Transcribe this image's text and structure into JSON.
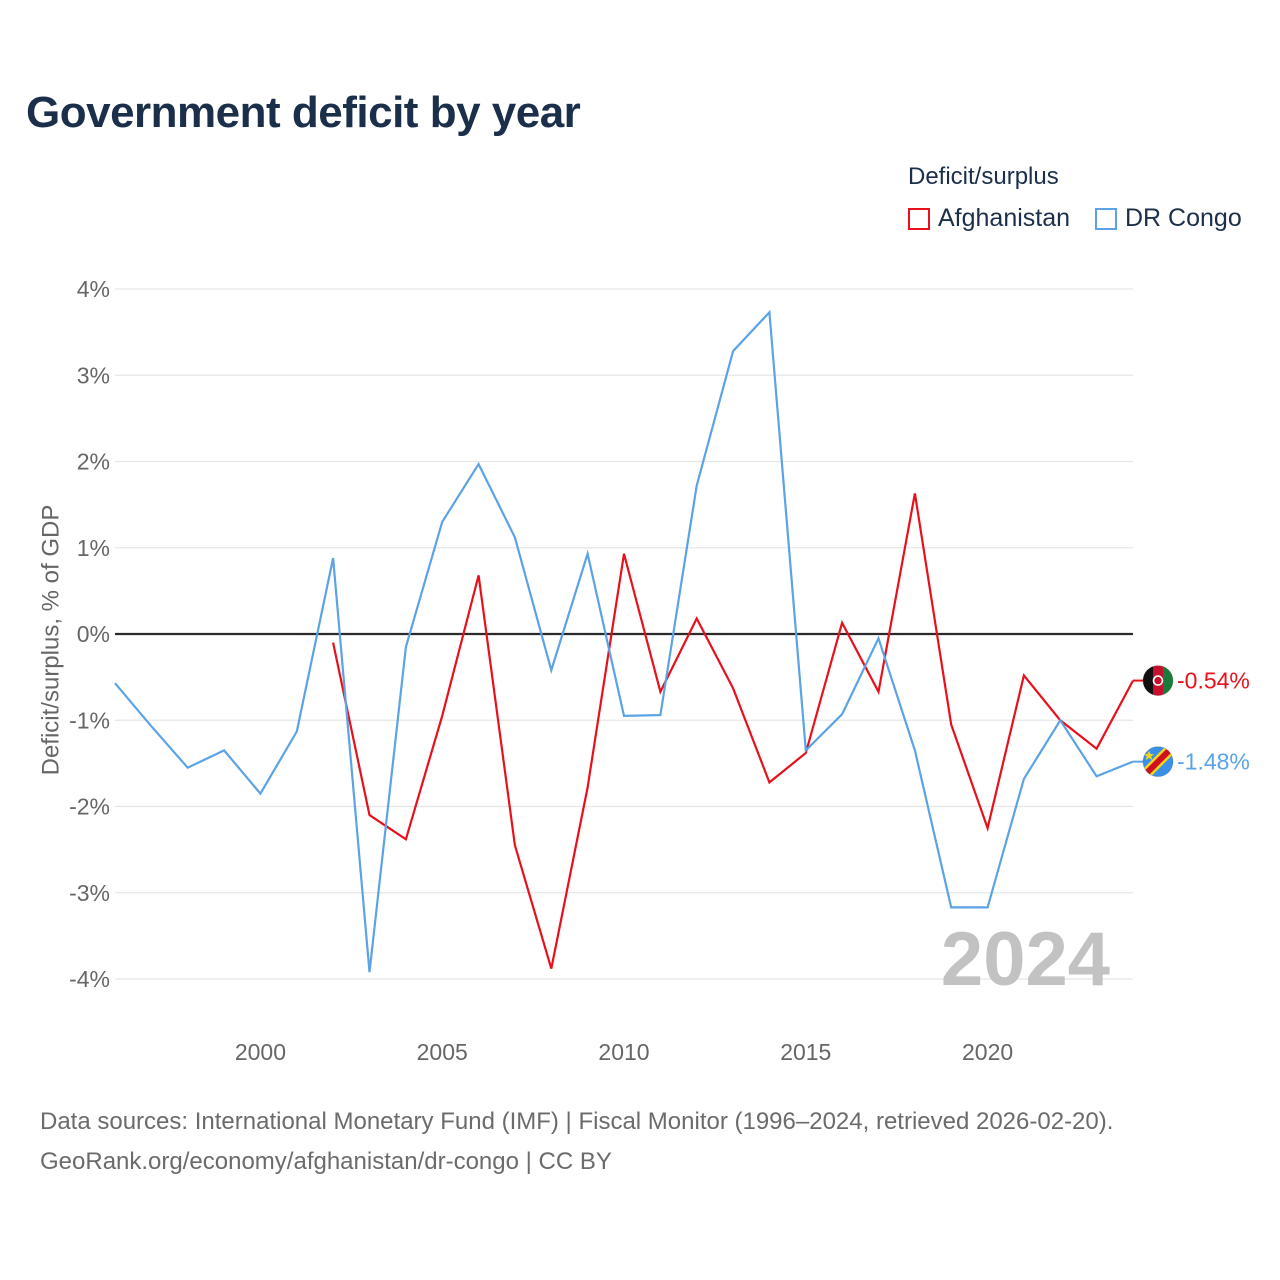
{
  "title": "Government deficit by year",
  "legend": {
    "title": "Deficit/surplus",
    "items": [
      {
        "label": "Afghanistan",
        "color": "#e8101a"
      },
      {
        "label": "DR Congo",
        "color": "#5ba3e6"
      }
    ]
  },
  "watermark_year": "2024",
  "footer": {
    "line1": "Data sources: International Monetary Fund (IMF) | Fiscal Monitor (1996–2024, retrieved 2026-02-20).",
    "line2": "GeoRank.org/economy/afghanistan/dr-congo | CC BY"
  },
  "chart_data": {
    "type": "line",
    "title": "Government deficit by year",
    "xlabel": "",
    "ylabel": "Deficit/surplus, % of GDP",
    "xlim": [
      1996,
      2024
    ],
    "ylim": [
      -4.3,
      4.2
    ],
    "x_ticks": [
      2000,
      2005,
      2010,
      2015,
      2020
    ],
    "y_ticks": [
      {
        "value": 4,
        "label": "4%"
      },
      {
        "value": 3,
        "label": "3%"
      },
      {
        "value": 2,
        "label": "2%"
      },
      {
        "value": 1,
        "label": "1%"
      },
      {
        "value": 0,
        "label": "0%"
      },
      {
        "value": -1,
        "label": "-1%"
      },
      {
        "value": -2,
        "label": "-2%"
      },
      {
        "value": -3,
        "label": "-3%"
      },
      {
        "value": -4,
        "label": "-4%"
      }
    ],
    "series": [
      {
        "name": "Afghanistan",
        "color": "#e8101a",
        "end_label": "-0.54%",
        "x": [
          2002,
          2003,
          2004,
          2005,
          2006,
          2007,
          2008,
          2009,
          2010,
          2011,
          2012,
          2013,
          2014,
          2015,
          2016,
          2017,
          2018,
          2019,
          2020,
          2021,
          2022,
          2023,
          2024
        ],
        "values": [
          -0.1,
          -2.1,
          -2.38,
          -0.95,
          0.68,
          -2.45,
          -3.88,
          -1.78,
          0.93,
          -0.67,
          0.18,
          -0.63,
          -1.72,
          -1.38,
          0.13,
          -0.67,
          1.63,
          -1.05,
          -2.25,
          -0.48,
          -1.0,
          -1.33,
          -0.54
        ]
      },
      {
        "name": "DR Congo",
        "color": "#5ba3e6",
        "end_label": "-1.48%",
        "x": [
          1996,
          1997,
          1998,
          1999,
          2000,
          2001,
          2002,
          2003,
          2004,
          2005,
          2006,
          2007,
          2008,
          2009,
          2010,
          2011,
          2012,
          2013,
          2014,
          2015,
          2016,
          2017,
          2018,
          2019,
          2020,
          2021,
          2022,
          2023,
          2024
        ],
        "values": [
          -0.57,
          -1.07,
          -1.55,
          -1.35,
          -1.85,
          -1.13,
          0.88,
          -3.92,
          -0.15,
          1.3,
          1.97,
          1.12,
          -0.42,
          0.93,
          -0.95,
          -0.94,
          1.72,
          3.28,
          3.73,
          -1.35,
          -0.93,
          -0.05,
          -1.35,
          -3.17,
          -3.17,
          -1.68,
          -1.0,
          -1.65,
          -1.48
        ]
      }
    ]
  }
}
